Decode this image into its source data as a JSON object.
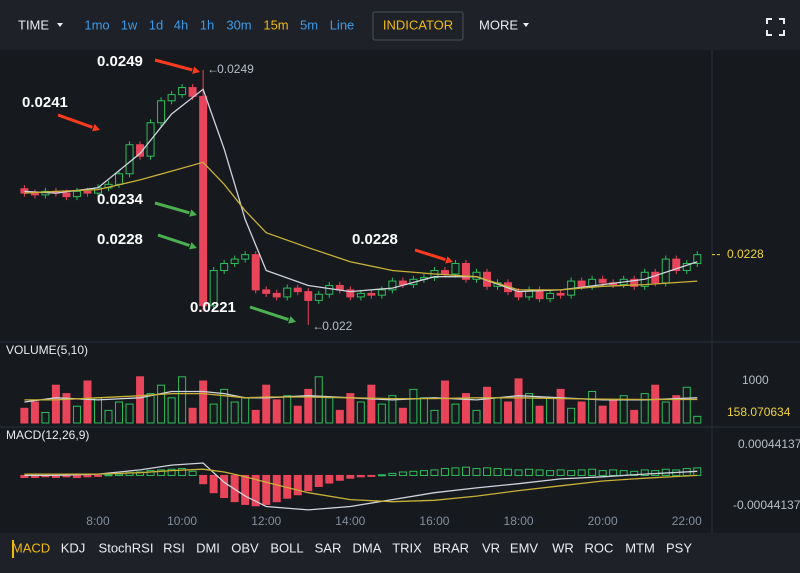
{
  "toolbar": {
    "time": "TIME",
    "intervals": [
      {
        "label": "1mo"
      },
      {
        "label": "1w"
      },
      {
        "label": "1d"
      },
      {
        "label": "4h"
      },
      {
        "label": "1h"
      },
      {
        "label": "30m"
      },
      {
        "label": "15m",
        "active": true
      },
      {
        "label": "5m"
      },
      {
        "label": "Line"
      }
    ],
    "indicator_button": "INDICATOR",
    "more": "MORE"
  },
  "indicators": [
    {
      "label": "MACD",
      "active": true
    },
    {
      "label": "KDJ"
    },
    {
      "label": "StochRSI"
    },
    {
      "label": "RSI"
    },
    {
      "label": "DMI"
    },
    {
      "label": "OBV"
    },
    {
      "label": "BOLL"
    },
    {
      "label": "SAR"
    },
    {
      "label": "DMA"
    },
    {
      "label": "TRIX"
    },
    {
      "label": "BRAR"
    },
    {
      "label": "VR"
    },
    {
      "label": "EMV"
    },
    {
      "label": "WR"
    },
    {
      "label": "ROC"
    },
    {
      "label": "MTM"
    },
    {
      "label": "PSY"
    }
  ],
  "chart_data": [
    {
      "type": "candlestick",
      "up_color": "#2ebd5b",
      "down_color": "#e8445a",
      "xlim": [
        5.67,
        22.6
      ],
      "xticks": [
        {
          "value": 8,
          "label": "8:00"
        },
        {
          "value": 10,
          "label": "10:00"
        },
        {
          "value": 12,
          "label": "12:00"
        },
        {
          "value": 14,
          "label": "14:00"
        },
        {
          "value": 16,
          "label": "16:00"
        },
        {
          "value": 18,
          "label": "18:00"
        },
        {
          "value": 20,
          "label": "20:00"
        },
        {
          "value": 22,
          "label": "22:00"
        }
      ],
      "ylim": [
        0.02183,
        0.02515
      ],
      "x": [
        6.25,
        6.5,
        6.75,
        7,
        7.25,
        7.5,
        7.75,
        8,
        8.25,
        8.5,
        8.75,
        9,
        9.25,
        9.5,
        9.75,
        10,
        10.25,
        10.5,
        10.75,
        11,
        11.25,
        11.5,
        11.75,
        12,
        12.25,
        12.5,
        12.75,
        13,
        13.25,
        13.5,
        13.75,
        14,
        14.25,
        14.5,
        14.75,
        15,
        15.25,
        15.5,
        15.75,
        16,
        16.25,
        16.5,
        16.75,
        17,
        17.25,
        17.5,
        17.75,
        18,
        18.25,
        18.5,
        18.75,
        19,
        19.25,
        19.5,
        19.75,
        20,
        20.25,
        20.5,
        20.75,
        21,
        21.25,
        21.5,
        21.75,
        22,
        22.25
      ],
      "open": [
        0.02355,
        0.0235,
        0.02348,
        0.02352,
        0.0235,
        0.02346,
        0.02352,
        0.0235,
        0.02356,
        0.0236,
        0.02372,
        0.02405,
        0.02392,
        0.0243,
        0.02455,
        0.02462,
        0.0247,
        0.0246,
        0.02222,
        0.02262,
        0.0227,
        0.02275,
        0.0228,
        0.0224,
        0.02236,
        0.02232,
        0.02242,
        0.02238,
        0.02228,
        0.02235,
        0.02245,
        0.0224,
        0.02232,
        0.02236,
        0.02234,
        0.0224,
        0.0225,
        0.02246,
        0.02252,
        0.02254,
        0.02262,
        0.02258,
        0.0227,
        0.02252,
        0.0226,
        0.02244,
        0.02248,
        0.02238,
        0.02232,
        0.0224,
        0.0223,
        0.02236,
        0.02234,
        0.0225,
        0.02244,
        0.02252,
        0.02248,
        0.02246,
        0.02252,
        0.02244,
        0.0226,
        0.02248,
        0.02275,
        0.02262,
        0.0227
      ],
      "high": [
        0.02359,
        0.02354,
        0.02356,
        0.02356,
        0.02354,
        0.02356,
        0.02356,
        0.0236,
        0.02364,
        0.02376,
        0.02409,
        0.02409,
        0.02434,
        0.02459,
        0.02466,
        0.02474,
        0.02474,
        0.0249,
        0.02266,
        0.02274,
        0.02279,
        0.02284,
        0.02284,
        0.02244,
        0.0224,
        0.02246,
        0.02246,
        0.02242,
        0.02239,
        0.02249,
        0.02249,
        0.02244,
        0.0224,
        0.0224,
        0.02244,
        0.02254,
        0.02254,
        0.02256,
        0.02258,
        0.02266,
        0.02266,
        0.02274,
        0.02274,
        0.02264,
        0.02264,
        0.02252,
        0.02252,
        0.02242,
        0.02244,
        0.02244,
        0.0224,
        0.0224,
        0.02254,
        0.02254,
        0.02256,
        0.02256,
        0.02252,
        0.02256,
        0.02256,
        0.02264,
        0.02264,
        0.02279,
        0.02279,
        0.02274,
        0.02284
      ],
      "low": [
        0.02346,
        0.02344,
        0.02344,
        0.02346,
        0.02342,
        0.02342,
        0.02346,
        0.02346,
        0.02352,
        0.02356,
        0.02368,
        0.02388,
        0.02388,
        0.02426,
        0.02451,
        0.02458,
        0.02456,
        0.02215,
        0.02218,
        0.02258,
        0.02266,
        0.02271,
        0.02236,
        0.02232,
        0.02228,
        0.02228,
        0.02234,
        0.022,
        0.02224,
        0.02231,
        0.02236,
        0.02228,
        0.02228,
        0.0223,
        0.0223,
        0.02236,
        0.02242,
        0.02242,
        0.02248,
        0.0225,
        0.02254,
        0.02254,
        0.02248,
        0.02248,
        0.0224,
        0.0224,
        0.02234,
        0.02228,
        0.02228,
        0.02226,
        0.02226,
        0.0223,
        0.0223,
        0.0224,
        0.0224,
        0.02244,
        0.02242,
        0.02242,
        0.0224,
        0.0224,
        0.02244,
        0.02244,
        0.02258,
        0.02258,
        0.02266
      ],
      "close": [
        0.0235,
        0.02348,
        0.02352,
        0.0235,
        0.02346,
        0.02352,
        0.0235,
        0.02356,
        0.0236,
        0.02372,
        0.02405,
        0.02392,
        0.0243,
        0.02455,
        0.02462,
        0.0247,
        0.0246,
        0.02222,
        0.02262,
        0.0227,
        0.02275,
        0.0228,
        0.0224,
        0.02236,
        0.02232,
        0.02242,
        0.02238,
        0.02228,
        0.02235,
        0.02245,
        0.0224,
        0.02232,
        0.02236,
        0.02234,
        0.0224,
        0.0225,
        0.02246,
        0.02252,
        0.02254,
        0.02262,
        0.02258,
        0.0227,
        0.02252,
        0.0226,
        0.02244,
        0.02248,
        0.02238,
        0.02232,
        0.0224,
        0.0223,
        0.02236,
        0.02234,
        0.0225,
        0.02244,
        0.02252,
        0.02248,
        0.02246,
        0.02252,
        0.02244,
        0.0226,
        0.02248,
        0.02275,
        0.02262,
        0.0227,
        0.0228
      ],
      "lines": [
        {
          "color": "#cfd3dc",
          "x": [
            6.25,
            7,
            8,
            9,
            9.75,
            10.5,
            11,
            11.5,
            12,
            13,
            14,
            15,
            16,
            17,
            18,
            19,
            20,
            21,
            22.25
          ],
          "values": [
            0.02352,
            0.0235,
            0.02356,
            0.02395,
            0.0244,
            0.02468,
            0.024,
            0.0232,
            0.02262,
            0.02245,
            0.02238,
            0.02242,
            0.02255,
            0.02255,
            0.02238,
            0.0224,
            0.02246,
            0.02252,
            0.02272
          ]
        },
        {
          "color": "#c9b037",
          "x": [
            6.25,
            7,
            8,
            9,
            9.75,
            10.5,
            11,
            11.5,
            12,
            13,
            14,
            15,
            16,
            17,
            18,
            19,
            20,
            21,
            22.25
          ],
          "values": [
            0.0235,
            0.02352,
            0.02354,
            0.02365,
            0.02375,
            0.02385,
            0.0236,
            0.0233,
            0.02305,
            0.02288,
            0.02272,
            0.02262,
            0.02258,
            0.02255,
            0.0224,
            0.0224,
            0.02244,
            0.02246,
            0.0225
          ]
        }
      ],
      "annotations": [
        {
          "text": "0.0249"
        },
        {
          "text": "0.0241"
        },
        {
          "text": "0.0234"
        },
        {
          "text": "0.0228"
        },
        {
          "text": "0.0221"
        },
        {
          "text": "0.0228"
        }
      ]
    },
    {
      "type": "bar",
      "title": "VOLUME(5,10)",
      "ylim": [
        0,
        1857
      ],
      "yticks": [
        1000
      ],
      "values": [
        350,
        500,
        250,
        900,
        700,
        400,
        1000,
        600,
        300,
        500,
        450,
        1100,
        700,
        900,
        600,
        1100,
        350,
        1000,
        450,
        800,
        500,
        600,
        300,
        900,
        550,
        650,
        400,
        800,
        1100,
        600,
        300,
        700,
        500,
        900,
        450,
        650,
        350,
        800,
        600,
        300,
        1000,
        450,
        700,
        300,
        850,
        600,
        500,
        1050,
        700,
        400,
        600,
        800,
        350,
        500,
        750,
        400,
        550,
        650,
        300,
        700,
        900,
        500,
        650,
        850,
        158.070634
      ],
      "lines": [
        {
          "color": "#cfd3dc",
          "x": [
            6.25,
            7,
            8,
            9,
            9.75,
            10.5,
            11,
            11.5,
            12,
            13,
            14,
            15,
            16,
            17,
            18,
            19,
            20,
            21,
            22.25
          ],
          "values": [
            500,
            600,
            550,
            600,
            750,
            750,
            700,
            600,
            600,
            650,
            600,
            550,
            600,
            550,
            650,
            600,
            550,
            550,
            600
          ]
        },
        {
          "color": "#c9b037",
          "x": [
            6.25,
            7,
            8,
            9,
            9.75,
            10.5,
            11,
            11.5,
            12,
            13,
            14,
            15,
            16,
            17,
            18,
            19,
            20,
            21,
            22.25
          ],
          "values": [
            550,
            550,
            600,
            650,
            700,
            700,
            650,
            600,
            620,
            620,
            600,
            580,
            580,
            600,
            600,
            580,
            570,
            560,
            560
          ]
        }
      ]
    },
    {
      "type": "histogram",
      "title": "MACD(12,26,9)",
      "ylim": [
        -0.00053,
        0.00063
      ],
      "yticks": [
        0.00044137,
        -0.00044137
      ],
      "values": [
        -3e-05,
        -3e-05,
        -2e-05,
        -3e-05,
        -2e-05,
        -3e-05,
        -2e-05,
        -1e-05,
        1e-05,
        2e-05,
        4e-05,
        5e-05,
        7e-05,
        8e-05,
        9e-05,
        0.0001,
        6e-05,
        -0.00012,
        -0.00025,
        -0.00032,
        -0.00038,
        -0.00042,
        -0.00044,
        -0.00042,
        -0.00038,
        -0.00033,
        -0.00028,
        -0.00022,
        -0.00016,
        -0.00011,
        -7e-05,
        -4e-05,
        -2e-05,
        -1e-05,
        1e-05,
        3e-05,
        5e-05,
        6e-05,
        7e-05,
        8e-05,
        0.0001,
        0.00011,
        0.00012,
        0.0001,
        0.00011,
        0.0001,
        9e-05,
        8e-05,
        9e-05,
        8e-05,
        7e-05,
        8e-05,
        7e-05,
        8e-05,
        9e-05,
        7e-05,
        8e-05,
        7e-05,
        6e-05,
        8e-05,
        7e-05,
        9e-05,
        8e-05,
        0.0001,
        0.00011
      ],
      "lines": [
        {
          "color": "#cfd3dc",
          "x": [
            6.25,
            7,
            8,
            9,
            9.75,
            10.5,
            11,
            11.5,
            12,
            13,
            14,
            15,
            16,
            17,
            18,
            19,
            20,
            21,
            22.25
          ],
          "values": [
            0,
            0,
            2e-05,
            8e-05,
            0.00015,
            0.00018,
            -0.0001,
            -0.0003,
            -0.00045,
            -0.0005,
            -0.00045,
            -0.00035,
            -0.00025,
            -0.00018,
            -0.00012,
            -5e-05,
            -2e-05,
            2e-05,
            6e-05
          ]
        },
        {
          "color": "#c9b037",
          "x": [
            6.25,
            7,
            8,
            9,
            9.75,
            10.5,
            11,
            11.5,
            12,
            13,
            14,
            15,
            16,
            17,
            18,
            19,
            20,
            21,
            22.25
          ],
          "values": [
            2e-05,
            2e-05,
            2e-05,
            4e-05,
            7e-05,
            9e-05,
            5e-05,
            -2e-05,
            -0.0001,
            -0.00025,
            -0.00035,
            -0.00038,
            -0.00036,
            -0.0003,
            -0.00022,
            -0.00015,
            -8e-05,
            -4e-05,
            0
          ]
        }
      ]
    }
  ]
}
